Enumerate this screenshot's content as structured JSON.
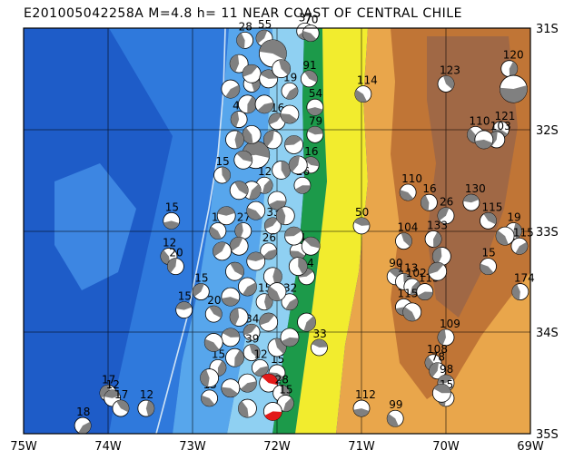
{
  "title": "E201005042258A  M=4.8  h= 11  NEAR COAST OF CENTRAL CHILE",
  "lon_labels": [
    "75W",
    "74W",
    "73W",
    "72W",
    "71W",
    "70W",
    "69W"
  ],
  "lat_labels": [
    "31S",
    "32S",
    "33S",
    "34S",
    "35S"
  ],
  "extent": {
    "lon_min": -75,
    "lon_max": -69,
    "lat_min": -35,
    "lat_max": -31
  },
  "colors": {
    "deep_ocean": "#1e5cc8",
    "ocean": "#2f79dc",
    "shelf": "#57a6ec",
    "coast": "#8fd0f2",
    "lowland": "#1c9a4a",
    "hill_yellow": "#f2ec2e",
    "upland": "#e9a64b",
    "mountain": "#c07536",
    "high_mountain": "#a06845",
    "beachball_fill": "#808080",
    "highlight_fill": "#e21a1a"
  },
  "events": [
    {
      "lon": -71.67,
      "lat": -31.03,
      "depth": "37"
    },
    {
      "lon": -71.6,
      "lat": -31.05,
      "depth": "70"
    },
    {
      "lon": -72.38,
      "lat": -31.12,
      "depth": "28"
    },
    {
      "lon": -72.15,
      "lat": -31.1,
      "depth": "55"
    },
    {
      "lon": -72.05,
      "lat": -31.25,
      "depth": "",
      "big": true
    },
    {
      "lon": -71.62,
      "lat": -31.5,
      "depth": "91"
    },
    {
      "lon": -72.3,
      "lat": -31.55,
      "depth": "28"
    },
    {
      "lon": -71.85,
      "lat": -31.62,
      "depth": "19"
    },
    {
      "lon": -71.55,
      "lat": -31.78,
      "depth": "54"
    },
    {
      "lon": -70.98,
      "lat": -31.65,
      "depth": "114"
    },
    {
      "lon": -72.45,
      "lat": -31.9,
      "depth": "42"
    },
    {
      "lon": -72.0,
      "lat": -31.92,
      "depth": "16"
    },
    {
      "lon": -71.55,
      "lat": -32.05,
      "depth": "79"
    },
    {
      "lon": -70.0,
      "lat": -31.55,
      "depth": "123"
    },
    {
      "lon": -69.25,
      "lat": -31.4,
      "depth": "120"
    },
    {
      "lon": -69.2,
      "lat": -31.6,
      "depth": "",
      "big": true
    },
    {
      "lon": -69.35,
      "lat": -32.0,
      "depth": "121"
    },
    {
      "lon": -69.65,
      "lat": -32.05,
      "depth": "110"
    },
    {
      "lon": -69.4,
      "lat": -32.1,
      "depth": "103"
    },
    {
      "lon": -72.25,
      "lat": -32.25,
      "depth": "",
      "big": true
    },
    {
      "lon": -71.6,
      "lat": -32.35,
      "depth": "16"
    },
    {
      "lon": -72.65,
      "lat": -32.45,
      "depth": "15"
    },
    {
      "lon": -72.15,
      "lat": -32.55,
      "depth": "12"
    },
    {
      "lon": -71.7,
      "lat": -32.55,
      "depth": "26"
    },
    {
      "lon": -70.45,
      "lat": -32.62,
      "depth": "110"
    },
    {
      "lon": -70.2,
      "lat": -32.72,
      "depth": "16"
    },
    {
      "lon": -70.0,
      "lat": -32.85,
      "depth": "26"
    },
    {
      "lon": -69.7,
      "lat": -32.72,
      "depth": "130"
    },
    {
      "lon": -69.5,
      "lat": -32.9,
      "depth": "115"
    },
    {
      "lon": -69.2,
      "lat": -33.0,
      "depth": "19"
    },
    {
      "lon": -69.13,
      "lat": -33.15,
      "depth": "115"
    },
    {
      "lon": -73.25,
      "lat": -32.9,
      "depth": "15"
    },
    {
      "lon": -72.7,
      "lat": -33.0,
      "depth": "15"
    },
    {
      "lon": -72.4,
      "lat": -33.0,
      "depth": "27"
    },
    {
      "lon": -72.05,
      "lat": -32.95,
      "depth": "33"
    },
    {
      "lon": -71.0,
      "lat": -32.95,
      "depth": "50"
    },
    {
      "lon": -70.5,
      "lat": -33.1,
      "depth": "104"
    },
    {
      "lon": -70.15,
      "lat": -33.08,
      "depth": "133"
    },
    {
      "lon": -72.1,
      "lat": -33.2,
      "depth": "26"
    },
    {
      "lon": -71.75,
      "lat": -33.2,
      "depth": "14"
    },
    {
      "lon": -73.28,
      "lat": -33.25,
      "depth": "12"
    },
    {
      "lon": -73.2,
      "lat": -33.35,
      "depth": "20"
    },
    {
      "lon": -71.65,
      "lat": -33.45,
      "depth": "14"
    },
    {
      "lon": -70.6,
      "lat": -33.45,
      "depth": "90"
    },
    {
      "lon": -70.5,
      "lat": -33.5,
      "depth": "113"
    },
    {
      "lon": -70.4,
      "lat": -33.55,
      "depth": "102"
    },
    {
      "lon": -70.25,
      "lat": -33.6,
      "depth": "113"
    },
    {
      "lon": -69.5,
      "lat": -33.35,
      "depth": "15"
    },
    {
      "lon": -69.12,
      "lat": -33.6,
      "depth": "174"
    },
    {
      "lon": -72.9,
      "lat": -33.6,
      "depth": "15"
    },
    {
      "lon": -73.1,
      "lat": -33.78,
      "depth": "15"
    },
    {
      "lon": -72.75,
      "lat": -33.82,
      "depth": "20"
    },
    {
      "lon": -72.15,
      "lat": -33.7,
      "depth": "15"
    },
    {
      "lon": -71.85,
      "lat": -33.7,
      "depth": "32"
    },
    {
      "lon": -70.5,
      "lat": -33.75,
      "depth": "115"
    },
    {
      "lon": -70.4,
      "lat": -33.8,
      "depth": ""
    },
    {
      "lon": -70.0,
      "lat": -34.05,
      "depth": "109"
    },
    {
      "lon": -72.3,
      "lat": -34.0,
      "depth": "34"
    },
    {
      "lon": -71.5,
      "lat": -34.15,
      "depth": "33"
    },
    {
      "lon": -72.3,
      "lat": -34.2,
      "depth": "39"
    },
    {
      "lon": -72.7,
      "lat": -34.35,
      "depth": "15"
    },
    {
      "lon": -72.2,
      "lat": -34.35,
      "depth": "12"
    },
    {
      "lon": -72.0,
      "lat": -34.4,
      "depth": "15"
    },
    {
      "lon": -70.15,
      "lat": -34.3,
      "depth": "108"
    },
    {
      "lon": -70.1,
      "lat": -34.38,
      "depth": "78"
    },
    {
      "lon": -70.0,
      "lat": -34.5,
      "depth": "98"
    },
    {
      "lon": -72.1,
      "lat": -34.5,
      "depth": "",
      "highlight": true
    },
    {
      "lon": -71.95,
      "lat": -34.6,
      "depth": "28"
    },
    {
      "lon": -71.9,
      "lat": -34.7,
      "depth": "15"
    },
    {
      "lon": -72.05,
      "lat": -34.78,
      "depth": "",
      "highlight": true
    },
    {
      "lon": -72.8,
      "lat": -34.65,
      "depth": "15"
    },
    {
      "lon": -70.0,
      "lat": -34.65,
      "depth": "15"
    },
    {
      "lon": -74.0,
      "lat": -34.6,
      "depth": "17"
    },
    {
      "lon": -73.95,
      "lat": -34.65,
      "depth": "12"
    },
    {
      "lon": -73.85,
      "lat": -34.75,
      "depth": "17"
    },
    {
      "lon": -73.55,
      "lat": -34.75,
      "depth": "12"
    },
    {
      "lon": -74.3,
      "lat": -34.92,
      "depth": "18"
    },
    {
      "lon": -71.0,
      "lat": -34.75,
      "depth": "112"
    },
    {
      "lon": -70.6,
      "lat": -34.85,
      "depth": "99"
    },
    {
      "lon": -72.45,
      "lat": -31.35,
      "depth": ""
    },
    {
      "lon": -72.3,
      "lat": -31.45,
      "depth": ""
    },
    {
      "lon": -72.1,
      "lat": -31.5,
      "depth": ""
    },
    {
      "lon": -71.95,
      "lat": -31.4,
      "depth": ""
    },
    {
      "lon": -72.35,
      "lat": -31.75,
      "depth": ""
    },
    {
      "lon": -72.15,
      "lat": -31.75,
      "depth": ""
    },
    {
      "lon": -71.85,
      "lat": -31.85,
      "depth": ""
    },
    {
      "lon": -72.3,
      "lat": -32.05,
      "depth": ""
    },
    {
      "lon": -72.05,
      "lat": -32.1,
      "depth": ""
    },
    {
      "lon": -71.8,
      "lat": -32.15,
      "depth": ""
    },
    {
      "lon": -72.4,
      "lat": -32.3,
      "depth": ""
    },
    {
      "lon": -71.95,
      "lat": -32.4,
      "depth": ""
    },
    {
      "lon": -72.3,
      "lat": -32.6,
      "depth": ""
    },
    {
      "lon": -72.0,
      "lat": -32.7,
      "depth": ""
    },
    {
      "lon": -72.25,
      "lat": -32.8,
      "depth": ""
    },
    {
      "lon": -71.9,
      "lat": -32.85,
      "depth": ""
    },
    {
      "lon": -72.45,
      "lat": -33.15,
      "depth": ""
    },
    {
      "lon": -72.25,
      "lat": -33.3,
      "depth": ""
    },
    {
      "lon": -72.5,
      "lat": -33.4,
      "depth": ""
    },
    {
      "lon": -72.05,
      "lat": -33.45,
      "depth": ""
    },
    {
      "lon": -72.35,
      "lat": -33.55,
      "depth": ""
    },
    {
      "lon": -72.55,
      "lat": -33.65,
      "depth": ""
    },
    {
      "lon": -72.0,
      "lat": -33.6,
      "depth": ""
    },
    {
      "lon": -72.45,
      "lat": -33.85,
      "depth": ""
    },
    {
      "lon": -72.1,
      "lat": -33.9,
      "depth": ""
    },
    {
      "lon": -72.55,
      "lat": -34.05,
      "depth": ""
    },
    {
      "lon": -72.0,
      "lat": -34.15,
      "depth": ""
    },
    {
      "lon": -72.5,
      "lat": -34.25,
      "depth": ""
    },
    {
      "lon": -72.35,
      "lat": -34.5,
      "depth": ""
    },
    {
      "lon": -72.55,
      "lat": -34.55,
      "depth": ""
    },
    {
      "lon": -72.35,
      "lat": -34.75,
      "depth": ""
    },
    {
      "lon": -71.75,
      "lat": -32.35,
      "depth": ""
    },
    {
      "lon": -71.8,
      "lat": -33.05,
      "depth": ""
    },
    {
      "lon": -71.6,
      "lat": -33.15,
      "depth": ""
    },
    {
      "lon": -71.75,
      "lat": -33.35,
      "depth": ""
    },
    {
      "lon": -71.65,
      "lat": -33.9,
      "depth": ""
    },
    {
      "lon": -71.85,
      "lat": -34.05,
      "depth": ""
    },
    {
      "lon": -72.75,
      "lat": -34.1,
      "depth": ""
    },
    {
      "lon": -72.8,
      "lat": -34.45,
      "depth": ""
    },
    {
      "lon": -72.65,
      "lat": -33.2,
      "depth": ""
    },
    {
      "lon": -72.6,
      "lat": -32.85,
      "depth": ""
    },
    {
      "lon": -72.45,
      "lat": -32.6,
      "depth": ""
    },
    {
      "lon": -72.5,
      "lat": -32.1,
      "depth": ""
    },
    {
      "lon": -72.55,
      "lat": -31.6,
      "depth": ""
    },
    {
      "lon": -69.55,
      "lat": -32.1,
      "depth": ""
    },
    {
      "lon": -69.3,
      "lat": -33.05,
      "depth": ""
    },
    {
      "lon": -70.05,
      "lat": -33.25,
      "depth": ""
    },
    {
      "lon": -70.1,
      "lat": -33.4,
      "depth": ""
    },
    {
      "lon": -70.05,
      "lat": -34.6,
      "depth": ""
    }
  ]
}
